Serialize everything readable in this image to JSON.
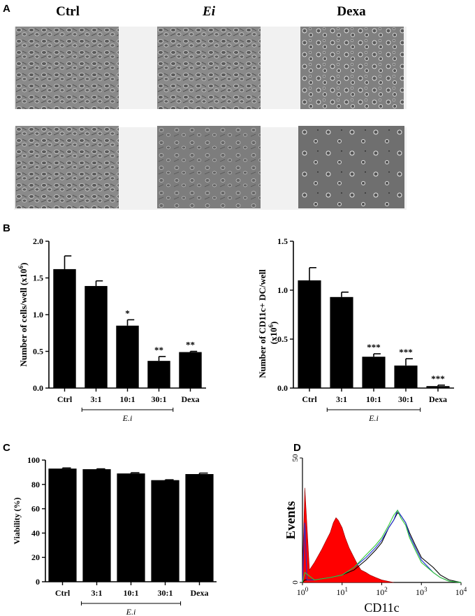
{
  "panels": {
    "a": "A",
    "b": "B",
    "c": "C",
    "d": "D"
  },
  "micrographs": {
    "headers": [
      {
        "text": "Ctrl",
        "italic": false
      },
      {
        "text": "Ei",
        "italic": true
      },
      {
        "text": "Dexa",
        "italic": false
      }
    ]
  },
  "chart_data": [
    {
      "id": "B-left",
      "type": "bar",
      "categories": [
        "Ctrl",
        "3:1",
        "10:1",
        "30:1",
        "Dexa"
      ],
      "values": [
        1.62,
        1.39,
        0.85,
        0.37,
        0.49
      ],
      "errors": [
        0.18,
        0.07,
        0.08,
        0.06,
        0.01
      ],
      "significance": [
        "",
        "",
        "*",
        "**",
        "**"
      ],
      "ylabel_main": "Number of cells/well (x10",
      "ylabel_sup": "6",
      "ylabel_end": ")",
      "ylim": [
        0,
        2.0
      ],
      "yticks": [
        "0.0",
        "0.5",
        "1.0",
        "1.5",
        "2.0"
      ],
      "group_label": "E.i",
      "grid": false
    },
    {
      "id": "B-right",
      "type": "bar",
      "categories": [
        "Ctrl",
        "3:1",
        "10:1",
        "30:1",
        "Dexa"
      ],
      "values": [
        1.1,
        0.93,
        0.32,
        0.23,
        0.02
      ],
      "errors": [
        0.13,
        0.05,
        0.03,
        0.07,
        0.01
      ],
      "significance": [
        "",
        "",
        "***",
        "***",
        "***"
      ],
      "ylabel_line1": "Number of CD11c+ DC/well",
      "ylabel_line2_main": "(x10",
      "ylabel_line2_sup": "6",
      "ylabel_line2_end": ")",
      "ylim": [
        0,
        1.5
      ],
      "yticks": [
        "0.0",
        "0.5",
        "1.0",
        "1.5"
      ],
      "group_label": "E.i",
      "grid": false
    },
    {
      "id": "C",
      "type": "bar",
      "categories": [
        "Ctrl",
        "3:1",
        "10:1",
        "30:1",
        "Dexa"
      ],
      "values": [
        93,
        92.5,
        89,
        83.5,
        88.5
      ],
      "errors": [
        0.5,
        0.3,
        0.6,
        0.3,
        0.8
      ],
      "ylabel": "Viability (%)",
      "ylim": [
        0,
        100
      ],
      "yticks": [
        "0",
        "20",
        "40",
        "60",
        "80",
        "100"
      ],
      "group_label": "E.i",
      "grid": false
    },
    {
      "id": "D",
      "type": "area",
      "scale": "log",
      "xlabel": "CD11c",
      "ylabel": "Events",
      "ylim": [
        0,
        50
      ],
      "yticks": [
        "0",
        "50"
      ],
      "xtick_base": "10",
      "xtick_exps": [
        "0",
        "1",
        "2",
        "3",
        "4"
      ],
      "series": [
        {
          "color": "#ff0000",
          "fill": true,
          "x": [
            1,
            1.15,
            1.5,
            2,
            3,
            4,
            5,
            6,
            7,
            8,
            10,
            12,
            15,
            20,
            25,
            30,
            40,
            50,
            70,
            100,
            150,
            200
          ],
          "y": [
            5,
            38,
            5,
            8,
            13,
            17,
            20,
            24,
            26,
            25,
            22,
            18,
            14,
            10,
            7,
            5,
            4,
            3,
            2,
            1,
            0.4,
            0
          ]
        },
        {
          "color": "#000000",
          "fill": false,
          "x": [
            1,
            1.15,
            2,
            5,
            10,
            20,
            40,
            70,
            100,
            150,
            200,
            250,
            300,
            400,
            500,
            700,
            1000,
            2000,
            3000,
            5000,
            10000
          ],
          "y": [
            0,
            1,
            1,
            2,
            3,
            5,
            9,
            13,
            16,
            22,
            25,
            28,
            27,
            24,
            20,
            15,
            10,
            6,
            3,
            1,
            0
          ]
        },
        {
          "color": "#1f2fd6",
          "fill": false,
          "x": [
            1,
            1.15,
            1.3,
            2,
            5,
            10,
            20,
            40,
            70,
            100,
            150,
            200,
            250,
            300,
            400,
            500,
            700,
            1000,
            2000,
            3000,
            5000,
            10000
          ],
          "y": [
            0,
            24,
            1,
            1,
            2,
            3,
            6,
            10,
            14,
            17,
            22,
            25,
            29,
            27,
            24,
            19,
            14,
            9,
            4,
            2,
            0.5,
            0
          ]
        },
        {
          "color": "#33cc33",
          "fill": false,
          "x": [
            1,
            1.15,
            2,
            5,
            10,
            20,
            40,
            70,
            100,
            150,
            200,
            250,
            300,
            400,
            500,
            700,
            1000,
            2000,
            3000,
            5000,
            10000
          ],
          "y": [
            0,
            4,
            1,
            2,
            3,
            6,
            11,
            15,
            18,
            23,
            27,
            29,
            26,
            23,
            18,
            13,
            8,
            4,
            2,
            0.5,
            0
          ]
        }
      ]
    }
  ]
}
